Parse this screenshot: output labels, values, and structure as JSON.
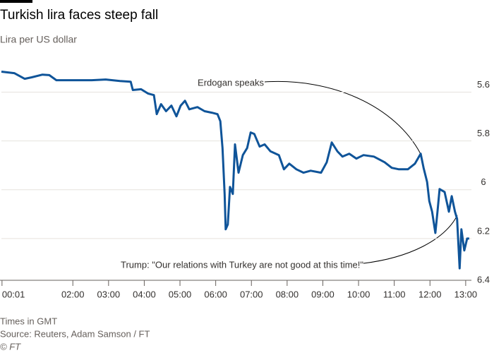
{
  "chart_data": {
    "type": "line",
    "title": "Turkish lira faces steep fall",
    "subtitle": "Lira per US dollar",
    "note": "Times in GMT",
    "source": "Source: Reuters, Adam Samson / FT",
    "credit": "© FT",
    "annotations": [
      "Erdogan speaks",
      "Trump: \"Our relations with Turkey are not good at this time!\""
    ],
    "x": [
      0,
      0.36,
      0.65,
      0.85,
      1.15,
      1.34,
      1.54,
      1.94,
      2.53,
      2.92,
      3.32,
      3.62,
      3.68,
      3.91,
      4.11,
      4.27,
      4.35,
      4.47,
      4.61,
      4.76,
      4.9,
      5.02,
      5.14,
      5.26,
      5.49,
      5.69,
      5.89,
      6.05,
      6.13,
      6.19,
      6.25,
      6.28,
      6.34,
      6.4,
      6.48,
      6.54,
      6.64,
      6.76,
      6.88,
      6.98,
      7.08,
      7.23,
      7.37,
      7.53,
      7.77,
      7.91,
      8.06,
      8.26,
      8.46,
      8.66,
      8.95,
      9.11,
      9.25,
      9.41,
      9.55,
      9.74,
      9.94,
      10.14,
      10.43,
      10.73,
      10.93,
      11.13,
      11.38,
      11.58,
      11.74,
      11.82,
      11.92,
      11.98,
      12.06,
      12.15,
      12.21,
      12.27,
      12.41,
      12.53,
      12.61,
      12.7,
      12.76,
      12.83,
      12.88,
      12.96,
      13.04,
      13.1
    ],
    "series": [
      {
        "name": "Lira per US dollar",
        "color": "#0f5499",
        "values": [
          5.545,
          5.551,
          5.574,
          5.568,
          5.557,
          5.559,
          5.58,
          5.58,
          5.58,
          5.577,
          5.583,
          5.586,
          5.62,
          5.617,
          5.635,
          5.641,
          5.719,
          5.678,
          5.707,
          5.684,
          5.728,
          5.684,
          5.664,
          5.699,
          5.69,
          5.707,
          5.713,
          5.719,
          5.748,
          5.858,
          6.046,
          6.191,
          6.171,
          6.017,
          6.046,
          5.843,
          5.959,
          5.887,
          5.858,
          5.794,
          5.8,
          5.852,
          5.843,
          5.871,
          5.887,
          5.945,
          5.922,
          5.945,
          5.959,
          5.951,
          5.959,
          5.916,
          5.835,
          5.872,
          5.893,
          5.881,
          5.901,
          5.887,
          5.893,
          5.916,
          5.939,
          5.945,
          5.945,
          5.922,
          5.881,
          5.939,
          5.997,
          6.075,
          6.119,
          6.206,
          6.119,
          6.026,
          6.038,
          6.119,
          6.055,
          6.119,
          6.148,
          6.351,
          6.191,
          6.278,
          6.229,
          6.229
        ]
      }
    ],
    "xlim": [
      0,
      13.2
    ],
    "xticks": [
      {
        "value": 0.0167,
        "label": "00:01"
      },
      {
        "value": 2,
        "label": "02:00"
      },
      {
        "value": 3,
        "label": "03:00"
      },
      {
        "value": 4,
        "label": "04:00"
      },
      {
        "value": 5,
        "label": "05:00"
      },
      {
        "value": 6,
        "label": "06:00"
      },
      {
        "value": 7,
        "label": "07:00"
      },
      {
        "value": 8,
        "label": "08:00"
      },
      {
        "value": 9,
        "label": "09:00"
      },
      {
        "value": 10,
        "label": "10:00"
      },
      {
        "value": 11,
        "label": "11:00"
      },
      {
        "value": 12,
        "label": "12:00"
      },
      {
        "value": 13,
        "label": "13:00"
      }
    ],
    "ylim": [
      5.5,
      6.4
    ],
    "yticks": [
      5.6,
      5.8,
      6,
      6.2,
      6.4
    ],
    "y_inverted": true,
    "grid": true
  }
}
